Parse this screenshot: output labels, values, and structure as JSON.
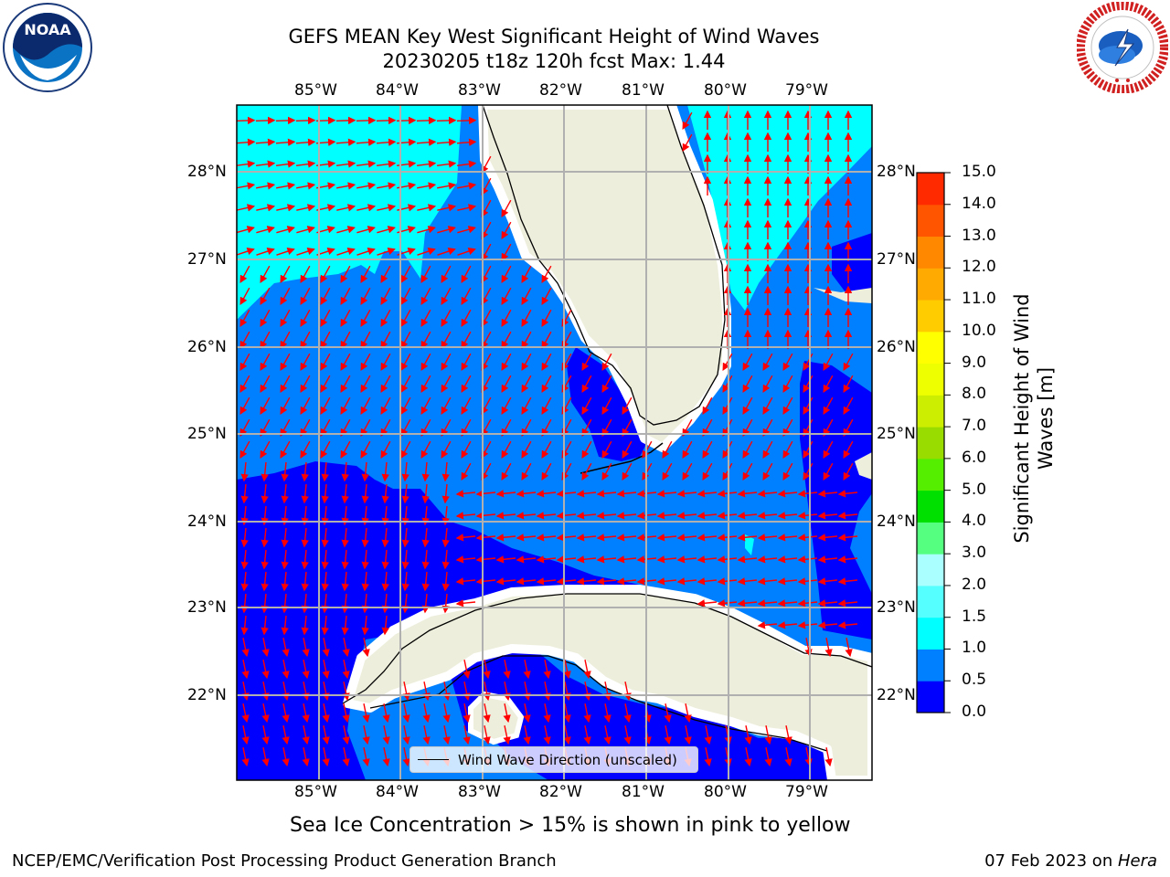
{
  "title_line1": "GEFS MEAN Key West Significant Height of Wind Waves",
  "title_line2": "20230205 t18z 120h fcst   Max: 1.44",
  "lon_labels": [
    "85°W",
    "84°W",
    "83°W",
    "82°W",
    "81°W",
    "80°W",
    "79°W"
  ],
  "lat_labels": [
    "28°N",
    "27°N",
    "26°N",
    "25°N",
    "24°N",
    "23°N",
    "22°N"
  ],
  "colorbar": {
    "label": "Significant Height of Wind Waves [m]",
    "ticks": [
      "0.0",
      "0.5",
      "1.0",
      "1.5",
      "2.0",
      "3.0",
      "4.0",
      "5.0",
      "6.0",
      "7.0",
      "8.0",
      "9.0",
      "10.0",
      "11.0",
      "12.0",
      "13.0",
      "14.0",
      "15.0"
    ],
    "colors": [
      "#0000ff",
      "#0080ff",
      "#00ffff",
      "#55ffff",
      "#aaffff",
      "#55ff80",
      "#00e000",
      "#55ee00",
      "#99dd00",
      "#ccee00",
      "#eeff00",
      "#ffff00",
      "#ffcc00",
      "#ffaa00",
      "#ff8800",
      "#ff5500",
      "#ff2a00",
      "#ff0000"
    ]
  },
  "legend": {
    "label": "Wind Wave Direction (unscaled)"
  },
  "caption": "Sea Ice Concentration > 15% is shown in pink to yellow",
  "footer_left": "NCEP/EMC/Verification Post Processing Product Generation Branch",
  "footer_date": "07 Feb 2023 on ",
  "footer_host": "Hera",
  "logos": {
    "noaa": "NOAA",
    "nws": "NATIONAL WEATHER SERVICE"
  },
  "colors": {
    "land": "#eeeedd",
    "arrow": "#ff0000",
    "grid": "#b0b0b0"
  }
}
